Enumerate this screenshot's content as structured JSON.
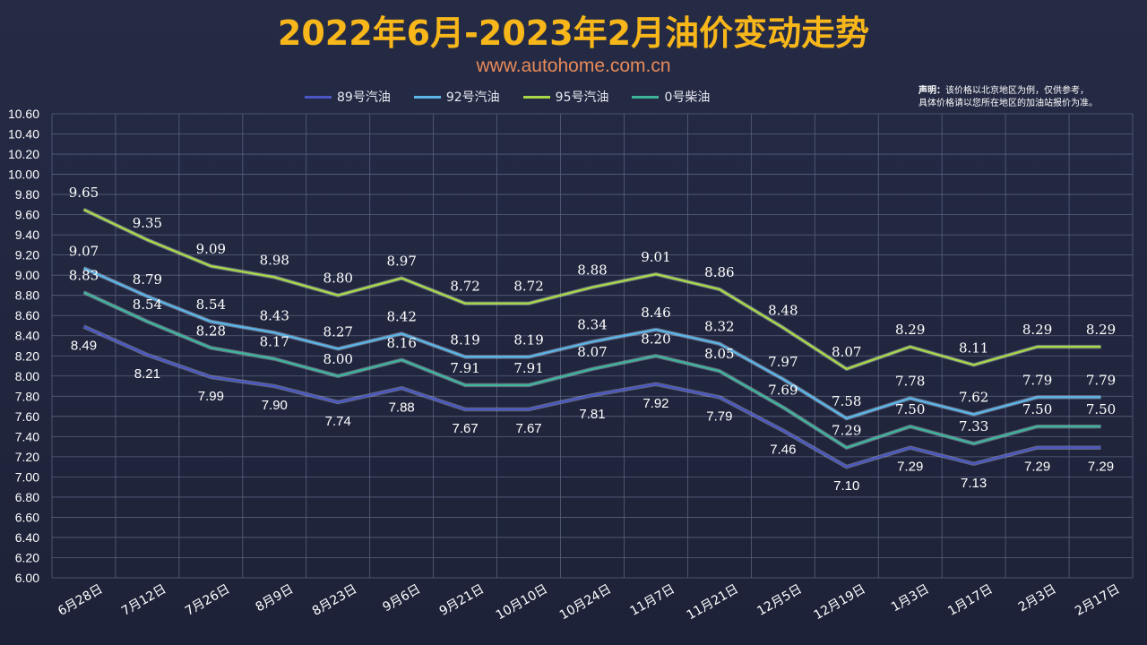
{
  "title": "2022年6月-2023年2月油价变动走势",
  "subtitle": "www.autohome.com.cn",
  "note": {
    "label": "声明：",
    "line1": "该价格以北京地区为例，仅供参考，",
    "line2": "具体价格请以您所在地区的加油站报价为准。"
  },
  "colors": {
    "s89": "#4a57c4",
    "s92": "#5ab5e8",
    "s95": "#a8d848",
    "s0": "#3eb49a",
    "grid": "#59607c",
    "axis_text": "#ffffff"
  },
  "chart_data": {
    "type": "line",
    "title": "2022年6月-2023年2月油价变动走势",
    "xlabel": "",
    "ylabel": "",
    "ylim": [
      6.0,
      10.6
    ],
    "ystep": 0.2,
    "yticks": [
      "6.00",
      "6.20",
      "6.40",
      "6.60",
      "6.80",
      "7.00",
      "7.20",
      "7.40",
      "7.60",
      "7.80",
      "8.00",
      "8.20",
      "8.40",
      "8.60",
      "8.80",
      "9.00",
      "9.20",
      "9.40",
      "9.60",
      "9.80",
      "10.00",
      "10.20",
      "10.40",
      "10.60"
    ],
    "legend_position": "top",
    "categories": [
      "6月28日",
      "7月12日",
      "7月26日",
      "8月9日",
      "8月23日",
      "9月6日",
      "9月21日",
      "10月10日",
      "10月24日",
      "11月7日",
      "11月21日",
      "12月5日",
      "12月19日",
      "1月3日",
      "1月17日",
      "2月3日",
      "2月17日"
    ],
    "series": [
      {
        "key": "s89",
        "name": "89号汽油",
        "values": [
          8.49,
          8.21,
          7.99,
          7.9,
          7.74,
          7.88,
          7.67,
          7.67,
          7.81,
          7.92,
          7.79,
          7.46,
          7.1,
          7.29,
          7.13,
          7.29,
          7.29
        ],
        "labels": [
          "8.49",
          "8.21",
          "7.99",
          "7.90",
          "7.74",
          "7.88",
          "7.67",
          "7.67",
          "7.81",
          "7.92",
          "7.79",
          "7.46",
          "7.10",
          "7.29",
          "7.13",
          "7.29",
          "7.29"
        ]
      },
      {
        "key": "s92",
        "name": "92号汽油",
        "values": [
          9.07,
          8.79,
          8.54,
          8.43,
          8.27,
          8.42,
          8.19,
          8.19,
          8.34,
          8.46,
          8.32,
          7.97,
          7.58,
          7.78,
          7.62,
          7.79,
          7.79
        ],
        "labels": [
          "9.07",
          "8.79",
          "8.54",
          "8.43",
          "8.27",
          "8.42",
          "8.19",
          "8.19",
          "8.34",
          "8.46",
          "8.32",
          "7.97",
          "7.58",
          "7.78",
          "7.62",
          "7.79",
          "7.79"
        ]
      },
      {
        "key": "s95",
        "name": "95号汽油",
        "values": [
          9.65,
          9.35,
          9.09,
          8.98,
          8.8,
          8.97,
          8.72,
          8.72,
          8.88,
          9.01,
          8.86,
          8.48,
          8.07,
          8.29,
          8.11,
          8.29,
          8.29
        ],
        "labels": [
          "9.65",
          "9.35",
          "9.09",
          "8.98",
          "8.80",
          "8.97",
          "8.72",
          "8.72",
          "8.88",
          "9.01",
          "8.86",
          "8.48",
          "8.07",
          "8.29",
          "8.11",
          "8.29",
          "8.29"
        ]
      },
      {
        "key": "s0",
        "name": "0号柴油",
        "values": [
          8.83,
          8.54,
          8.28,
          8.17,
          8.0,
          8.16,
          7.91,
          7.91,
          8.07,
          8.2,
          8.05,
          7.69,
          7.29,
          7.5,
          7.33,
          7.5,
          7.5
        ],
        "labels": [
          "8.83",
          "8.54",
          "8.28",
          "8.17",
          "8.00",
          "8.16",
          "7.91",
          "7.91",
          "8.07",
          "8.20",
          "8.05",
          "7.69",
          "7.29",
          "7.50",
          "7.33",
          "7.50",
          "7.50"
        ]
      }
    ]
  }
}
